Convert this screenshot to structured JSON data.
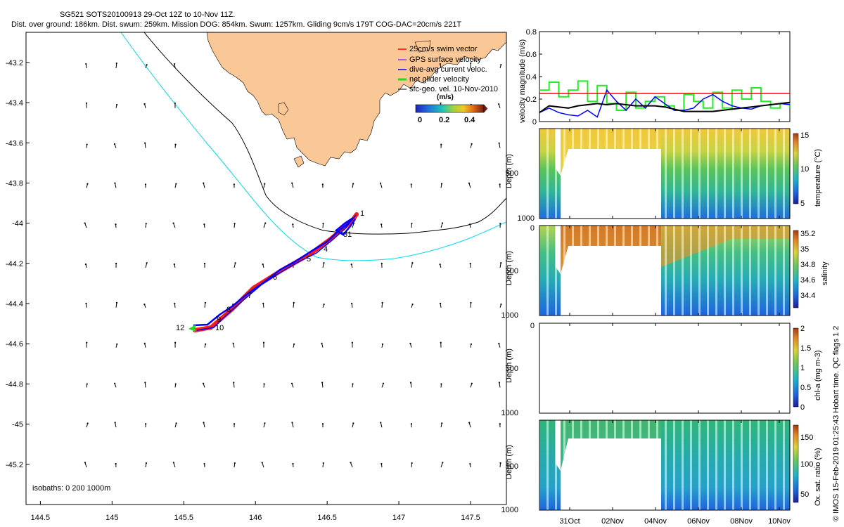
{
  "header": {
    "title_line1": "SG521 SOTS20100913 29-Oct 12Z to 10-Nov 11Z.",
    "title_line2": "Dist. over ground: 186km. Dist. swum: 259km. Mission DOG: 854km. Swum: 1257km. Gliding 9cm/s 179T COG-DAC=20cm/s 221T"
  },
  "copyright": "© IMOS 15-Feb-2019 01:25:43 Hobart time. QC flags 1  2",
  "colors": {
    "land": "#FAC896",
    "track": "#0000FF",
    "swim_vector": "#FF0000",
    "isobath_200": "#000000",
    "isobath_1000": "#00DDEE",
    "geo_vel_line": "#000000",
    "surface_vel_line": "#22EE22",
    "dac_line": "#0000FF",
    "ref_line": "#FF0000"
  },
  "map": {
    "isobaths_label": "isobaths: 0   200   1000m",
    "legend": [
      {
        "label": "25cm/s swim vector",
        "color": "#FF0000"
      },
      {
        "label": "GPS surface velocity",
        "color": "#9933FF"
      },
      {
        "label": "dive-avg current veloc.",
        "color": "#0000FF"
      },
      {
        "label": "net glider velocity",
        "color": "#22DD22"
      },
      {
        "label": "sfc-geo. vel. 10-Nov-2010",
        "color": "#000000"
      }
    ],
    "colorbar": {
      "unit": "(m/s)",
      "ticks": [
        "0",
        "0.2",
        "0.4"
      ]
    },
    "waypoint_labels": [
      "1",
      "31",
      "4",
      "5",
      "6",
      "7",
      "8",
      "9",
      "10",
      "12"
    ]
  },
  "chart_data": [
    {
      "type": "map",
      "xlim": [
        144.4,
        147.75
      ],
      "ylim": [
        -45.4,
        -43.05
      ],
      "x_ticks": [
        144.5,
        145,
        145.5,
        146,
        146.5,
        147,
        147.5
      ],
      "x_tick_labels": [
        "144.5",
        "145",
        "145.5",
        "146",
        "146.5",
        "147",
        "147.5"
      ],
      "y_ticks": [
        -43.2,
        -43.4,
        -43.6,
        -43.8,
        -44,
        -44.2,
        -44.4,
        -44.6,
        -44.8,
        -45,
        -45.2
      ],
      "y_tick_labels": [
        "-43.2",
        "-43.4",
        "-43.6",
        "-43.8",
        "-44",
        "-44.2",
        "-44.4",
        "-44.6",
        "-44.8",
        "-45",
        "-45.2"
      ],
      "track": [
        [
          145.58,
          -44.5
        ],
        [
          145.75,
          -44.42
        ],
        [
          145.95,
          -44.3
        ],
        [
          146.15,
          -44.2
        ],
        [
          146.35,
          -44.12
        ],
        [
          146.5,
          -44.04
        ],
        [
          146.62,
          -43.95
        ],
        [
          146.68,
          -43.92
        ]
      ]
    },
    {
      "type": "line",
      "ylabel": "velocity magnitude (m/s)",
      "ylim": [
        0,
        0.8
      ],
      "y_ticks": [
        "0",
        "0.2",
        "0.4",
        "0.6",
        "0.8"
      ],
      "series": [
        {
          "values": [
            0.08,
            0.14,
            0.13,
            0.12,
            0.14,
            0.15,
            0.16,
            0.15,
            0.16,
            0.15,
            0.14,
            0.14,
            0.14,
            0.13,
            0.11,
            0.09,
            0.09,
            0.09,
            0.09,
            0.1,
            0.11,
            0.12,
            0.13,
            0.14,
            0.15,
            0.16,
            0.17
          ]
        },
        {
          "values": [
            0.28,
            0.35,
            0.22,
            0.28,
            0.36,
            0.18,
            0.32,
            0.16,
            0.1,
            0.26,
            0.12,
            0.18,
            0.22,
            0.14,
            0.1,
            0.24,
            0.18,
            0.12,
            0.26,
            0.12,
            0.28,
            0.2,
            0.3,
            0.18,
            0.12,
            0.16,
            0.12
          ]
        },
        {
          "values": [
            0.08,
            0.12,
            0.08,
            0.06,
            0.05,
            0.1,
            0.04,
            0.28,
            0.18,
            0.1,
            0.2,
            0.12,
            0.22,
            0.16,
            0.1,
            0.1,
            0.12,
            0.2,
            0.24,
            0.18,
            0.14,
            0.12,
            0.11,
            0.14,
            0.15,
            0.16,
            0.15
          ]
        },
        {
          "values": [
            0.25,
            0.25
          ]
        }
      ]
    },
    {
      "type": "heatmap",
      "ylabel": "Depth (m)",
      "cbar_label": "temperature (°C)",
      "cbar_ticks": [
        "5",
        "10",
        "15"
      ],
      "y_ticks": [
        "500",
        "1000"
      ]
    },
    {
      "type": "heatmap",
      "ylabel": "Depth (m)",
      "cbar_label": "salinity",
      "cbar_ticks": [
        "34.4",
        "34.6",
        "34.8",
        "35",
        "35.2"
      ],
      "y_ticks": [
        "0",
        "500",
        "1000"
      ]
    },
    {
      "type": "heatmap",
      "ylabel": "Depth (m)",
      "cbar_label": "chl-a (mg m-3)",
      "cbar_ticks": [
        "0",
        "0.5",
        "1",
        "1.5",
        "2"
      ],
      "y_ticks": [
        "0",
        "500",
        "1000"
      ]
    },
    {
      "type": "heatmap",
      "ylabel": "Depth (m)",
      "cbar_label": "Ox. sat. ratio (%)",
      "cbar_ticks": [
        "50",
        "100",
        "150"
      ],
      "y_ticks": [
        "500",
        "1000"
      ],
      "x_tick_labels": [
        "31Oct",
        "02Nov",
        "04Nov",
        "06Nov",
        "08Nov",
        "10Nov"
      ]
    }
  ]
}
